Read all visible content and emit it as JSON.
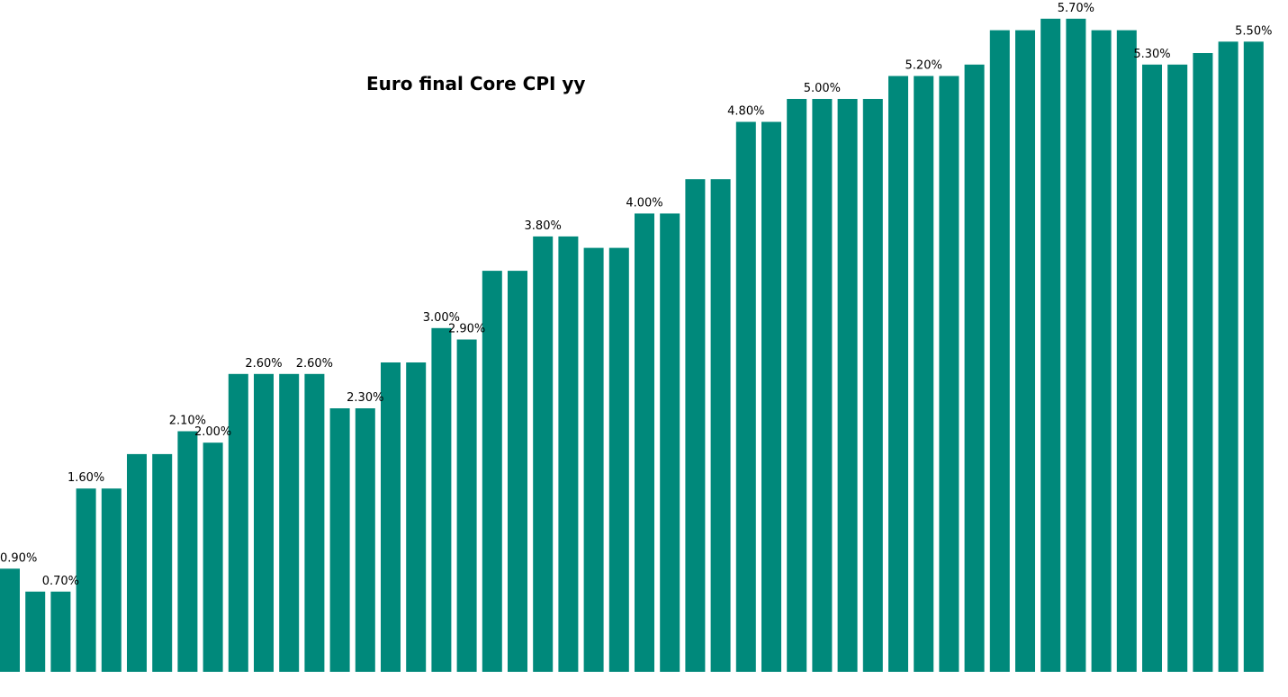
{
  "chart_data": {
    "type": "bar",
    "title": "Euro  final Core CPI yy",
    "xlabel": "",
    "ylabel": "",
    "ylim": [
      0,
      5.8
    ],
    "grid": false,
    "legend": "none",
    "bar_color": "#00897b",
    "values": [
      0.9,
      0.7,
      0.7,
      1.6,
      1.6,
      1.9,
      1.9,
      2.1,
      2.0,
      2.6,
      2.6,
      2.6,
      2.6,
      2.3,
      2.3,
      2.7,
      2.7,
      3.0,
      2.9,
      3.5,
      3.5,
      3.8,
      3.8,
      3.7,
      3.7,
      4.0,
      4.0,
      4.3,
      4.3,
      4.8,
      4.8,
      5.0,
      5.0,
      5.0,
      5.0,
      5.2,
      5.2,
      5.2,
      5.3,
      5.6,
      5.6,
      5.7,
      5.7,
      5.6,
      5.6,
      5.3,
      5.3,
      5.4,
      5.5,
      5.5
    ],
    "data_labels": [
      "0.90%",
      "",
      "0.70%",
      "1.60%",
      "",
      "",
      "",
      "2.10%",
      "2.00%",
      "",
      "2.60%",
      "",
      "2.60%",
      "",
      "2.30%",
      "",
      "",
      "3.00%",
      "2.90%",
      "",
      "",
      "3.80%",
      "",
      "",
      "",
      "4.00%",
      "",
      "",
      "",
      "4.80%",
      "",
      "",
      "5.00%",
      "",
      "",
      "",
      "5.20%",
      "",
      "",
      "",
      "",
      "",
      "5.70%",
      "",
      "",
      "5.30%",
      "",
      "",
      "",
      "5.50%"
    ]
  }
}
